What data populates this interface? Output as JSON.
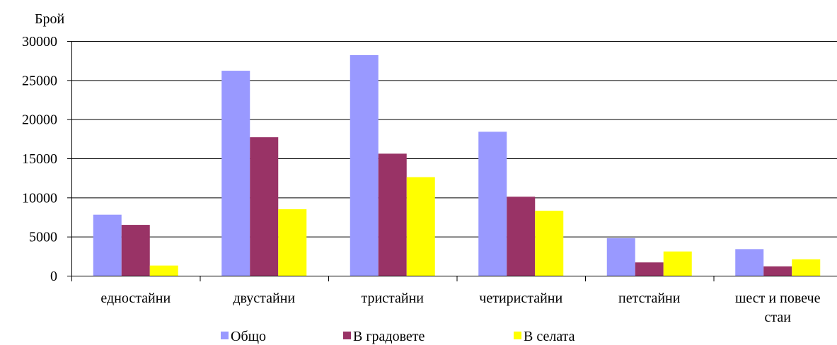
{
  "chart_data": {
    "type": "bar",
    "title": "",
    "ylabel": "Брой",
    "xlabel": "",
    "ylim": [
      0,
      30000
    ],
    "yticks": [
      0,
      5000,
      10000,
      15000,
      20000,
      25000,
      30000
    ],
    "grid": true,
    "legend_position": "bottom",
    "categories": [
      [
        "едностайни"
      ],
      [
        "двустайни"
      ],
      [
        "тристайни"
      ],
      [
        "четиристайни"
      ],
      [
        "петстайни"
      ],
      [
        "шест и повече",
        "стаи"
      ]
    ],
    "series": [
      {
        "name": "Общо",
        "color": "#9999FF",
        "values": [
          7800,
          26200,
          28200,
          18400,
          4800,
          3400
        ]
      },
      {
        "name": "В градовете",
        "color": "#993366",
        "values": [
          6500,
          17700,
          15600,
          10100,
          1700,
          1200
        ]
      },
      {
        "name": "В селата",
        "color": "#FFFF00",
        "values": [
          1300,
          8500,
          12600,
          8300,
          3100,
          2100
        ]
      }
    ]
  }
}
